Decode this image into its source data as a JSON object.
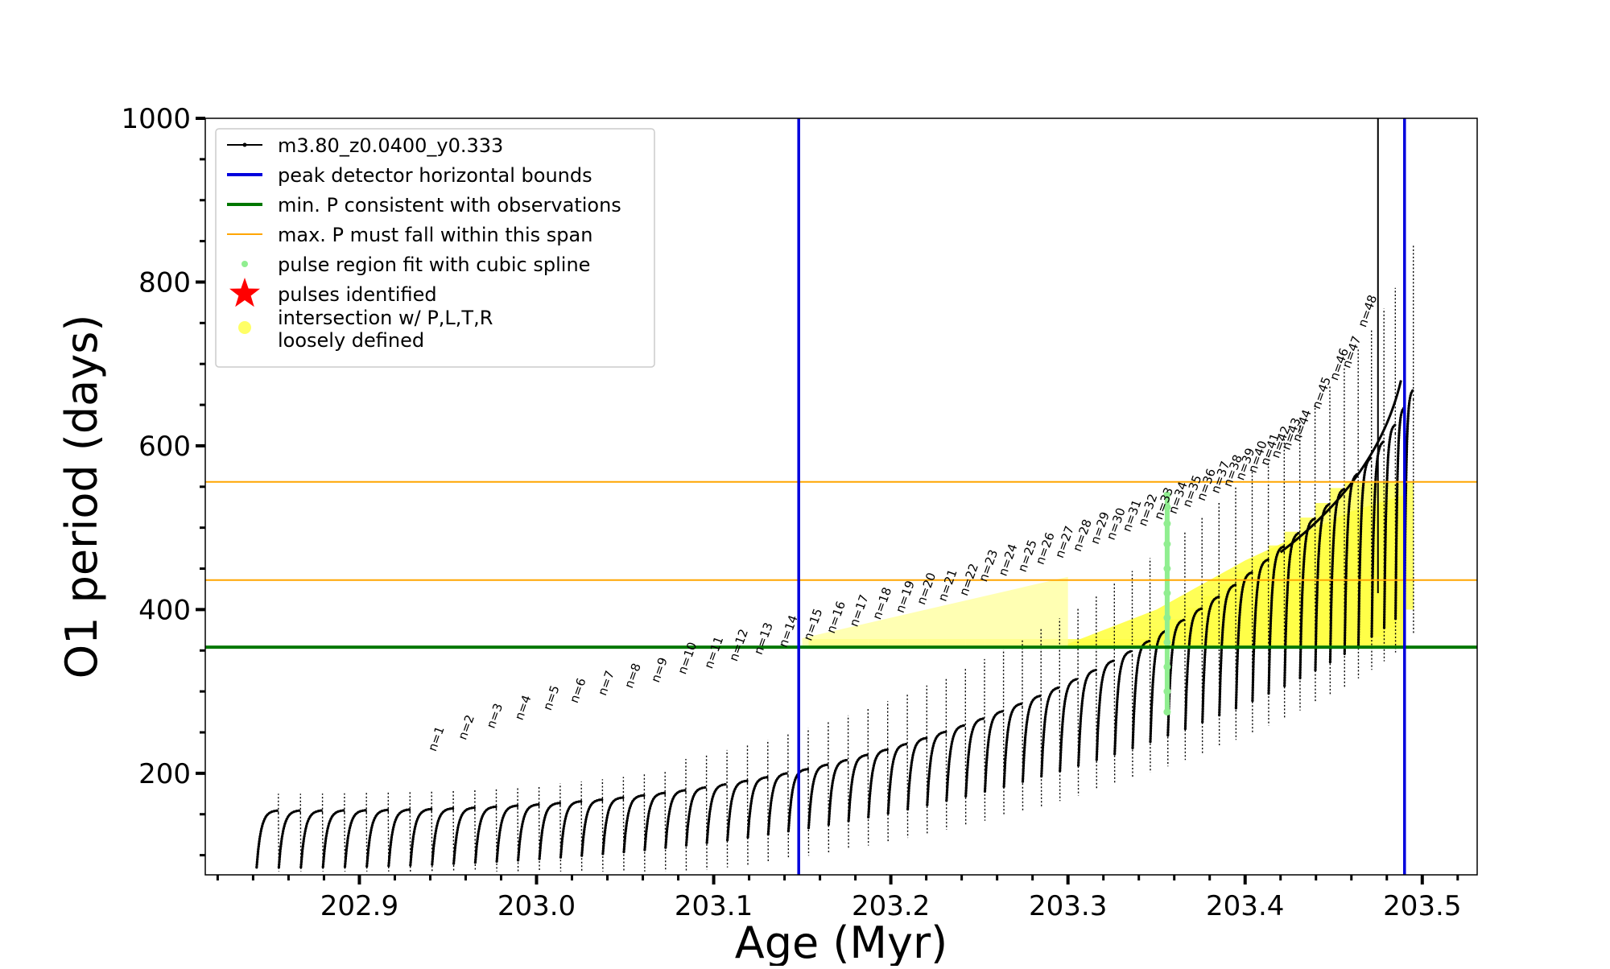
{
  "chart_data": {
    "type": "scatter",
    "title": "",
    "xlabel": "Age (Myr)",
    "ylabel": "O1 period (days)",
    "xlim": [
      202.813,
      203.531
    ],
    "ylim": [
      76,
      1000
    ],
    "x_ticks": [
      202.9,
      203.0,
      203.1,
      203.2,
      203.3,
      203.4,
      203.5
    ],
    "x_tick_labels": [
      "202.9",
      "203.0",
      "203.1",
      "203.2",
      "203.3",
      "203.4",
      "203.5"
    ],
    "y_ticks": [
      200,
      400,
      600,
      800,
      1000
    ],
    "y_tick_labels": [
      "200",
      "400",
      "600",
      "800",
      "1000"
    ],
    "grid": false,
    "legend_position": "upper-left",
    "legend": [
      {
        "label": "m3.80_z0.0400_y0.333",
        "kind": "line-marker",
        "color": "#000000"
      },
      {
        "label": "peak detector horizontal bounds",
        "kind": "line",
        "color": "#0000dd"
      },
      {
        "label": "min. P consistent with observations",
        "kind": "line",
        "color": "#007700"
      },
      {
        "label": "max. P must fall within this span",
        "kind": "line",
        "color": "#ffa500"
      },
      {
        "label": "pulse region fit with cubic spline",
        "kind": "dot",
        "color": "#90ee90"
      },
      {
        "label": "pulses identified",
        "kind": "star",
        "color": "#ff0000"
      },
      {
        "label": "intersection w/ P,L,T,R\nloosely defined",
        "kind": "dot",
        "color": "#ffff66"
      }
    ],
    "vertical_lines": [
      {
        "x": 203.148,
        "color": "#0000dd",
        "label": "peak detector horizontal bounds"
      },
      {
        "x": 203.49,
        "color": "#0000dd",
        "label": "peak detector horizontal bounds"
      }
    ],
    "horizontal_lines": [
      {
        "y": 354,
        "color": "#007700",
        "label": "min. P consistent with observations"
      },
      {
        "y": 436,
        "color": "#ffa500",
        "label": "max. P must fall within this span"
      },
      {
        "y": 556,
        "color": "#ffa500",
        "label": "max. P must fall within this span"
      }
    ],
    "series": [
      {
        "name": "m3.80_z0.0400_y0.333",
        "color": "#000000",
        "pulse_start_age": 202.842,
        "pulse_end_age": 203.49,
        "pulse_count": 62,
        "base_period_start": 85,
        "base_period_end": 400,
        "peak_period_start": 155,
        "peak_period_end": 670,
        "final_spike_age": 203.475,
        "final_spike_period": 1000
      },
      {
        "name": "pulse region fit with cubic spline",
        "color": "#90ee90",
        "x": [
          203.356,
          203.356,
          203.356,
          203.356,
          203.356,
          203.356,
          203.356,
          203.356,
          203.356,
          203.356,
          203.356
        ],
        "y": [
          275,
          300,
          330,
          360,
          390,
          420,
          450,
          480,
          505,
          525,
          540
        ]
      },
      {
        "name": "intersection w/ P,L,T,R loosely defined",
        "color": "#ffff66",
        "region": "dense band between P=354 and P=556 from age 203.15 to 203.49"
      }
    ],
    "pulse_labels": [
      {
        "text": "n=1",
        "x": 202.943,
        "y": 222
      },
      {
        "text": "n=2",
        "x": 202.96,
        "y": 236
      },
      {
        "text": "n=3",
        "x": 202.976,
        "y": 250
      },
      {
        "text": "n=4",
        "x": 202.992,
        "y": 260
      },
      {
        "text": "n=5",
        "x": 203.008,
        "y": 272
      },
      {
        "text": "n=6",
        "x": 203.023,
        "y": 281
      },
      {
        "text": "n=7",
        "x": 203.039,
        "y": 290
      },
      {
        "text": "n=8",
        "x": 203.054,
        "y": 299
      },
      {
        "text": "n=9",
        "x": 203.069,
        "y": 306
      },
      {
        "text": "n=10",
        "x": 203.084,
        "y": 316
      },
      {
        "text": "n=11",
        "x": 203.099,
        "y": 323
      },
      {
        "text": "n=12",
        "x": 203.113,
        "y": 332
      },
      {
        "text": "n=13",
        "x": 203.127,
        "y": 340
      },
      {
        "text": "n=14",
        "x": 203.141,
        "y": 349
      },
      {
        "text": "n=15",
        "x": 203.155,
        "y": 357
      },
      {
        "text": "n=16",
        "x": 203.168,
        "y": 366
      },
      {
        "text": "n=17",
        "x": 203.181,
        "y": 374
      },
      {
        "text": "n=18",
        "x": 203.194,
        "y": 383
      },
      {
        "text": "n=19",
        "x": 203.207,
        "y": 391
      },
      {
        "text": "n=20",
        "x": 203.219,
        "y": 401
      },
      {
        "text": "n=21",
        "x": 203.231,
        "y": 405
      },
      {
        "text": "n=22",
        "x": 203.243,
        "y": 412
      },
      {
        "text": "n=23",
        "x": 203.254,
        "y": 429
      },
      {
        "text": "n=24",
        "x": 203.265,
        "y": 436
      },
      {
        "text": "n=25",
        "x": 203.276,
        "y": 441
      },
      {
        "text": "n=26",
        "x": 203.286,
        "y": 450
      },
      {
        "text": "n=27",
        "x": 203.297,
        "y": 458
      },
      {
        "text": "n=28",
        "x": 203.307,
        "y": 466
      },
      {
        "text": "n=29",
        "x": 203.317,
        "y": 475
      },
      {
        "text": "n=30",
        "x": 203.326,
        "y": 480
      },
      {
        "text": "n=31",
        "x": 203.335,
        "y": 490
      },
      {
        "text": "n=32",
        "x": 203.344,
        "y": 497
      },
      {
        "text": "n=33",
        "x": 203.353,
        "y": 505
      },
      {
        "text": "n=34",
        "x": 203.361,
        "y": 512
      },
      {
        "text": "n=35",
        "x": 203.369,
        "y": 520
      },
      {
        "text": "n=36",
        "x": 203.377,
        "y": 528
      },
      {
        "text": "n=37",
        "x": 203.385,
        "y": 537
      },
      {
        "text": "n=38",
        "x": 203.392,
        "y": 545
      },
      {
        "text": "n=39",
        "x": 203.399,
        "y": 553
      },
      {
        "text": "n=40",
        "x": 203.406,
        "y": 562
      },
      {
        "text": "n=41",
        "x": 203.413,
        "y": 571
      },
      {
        "text": "n=42",
        "x": 203.419,
        "y": 580
      },
      {
        "text": "n=43",
        "x": 203.425,
        "y": 590
      },
      {
        "text": "n=44",
        "x": 203.431,
        "y": 600
      },
      {
        "text": "n=45",
        "x": 203.442,
        "y": 640
      },
      {
        "text": "n=46",
        "x": 203.452,
        "y": 675
      },
      {
        "text": "n=47",
        "x": 203.459,
        "y": 690
      },
      {
        "text": "n=48",
        "x": 203.468,
        "y": 740
      }
    ]
  }
}
